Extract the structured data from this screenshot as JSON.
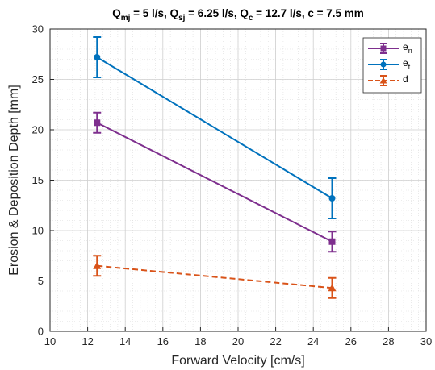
{
  "chart_data": {
    "type": "line",
    "title_parts": [
      {
        "t": "Q",
        "sub": "mj",
        "rest": " = 5 l/s, "
      },
      {
        "t": "Q",
        "sub": "sj",
        "rest": " = 6.25 l/s, "
      },
      {
        "t": "Q",
        "sub": "c",
        "rest": " = 12.7 l/s, c = 7.5 mm"
      }
    ],
    "xlabel": "Forward Velocity [cm/s]",
    "ylabel": "Erosion & Deposition Depth [mm]",
    "xlim": [
      10,
      30
    ],
    "ylim": [
      0,
      30
    ],
    "xticks": [
      10,
      12,
      14,
      16,
      18,
      20,
      22,
      24,
      26,
      28,
      30
    ],
    "yticks": [
      0,
      5,
      10,
      15,
      20,
      25,
      30
    ],
    "grid": true,
    "minor_grid": true,
    "legend_position": "top-right",
    "series": [
      {
        "name_base": "e",
        "name_sub": "n",
        "color": "#7E2F8E",
        "marker": "square",
        "dash": false,
        "x": [
          12.5,
          25
        ],
        "y": [
          20.7,
          8.9
        ],
        "err": [
          1.0,
          1.0
        ]
      },
      {
        "name_base": "e",
        "name_sub": "t",
        "color": "#0072BD",
        "marker": "circle",
        "dash": false,
        "x": [
          12.5,
          25
        ],
        "y": [
          27.2,
          13.2
        ],
        "err": [
          2.0,
          2.0
        ]
      },
      {
        "name_base": "d",
        "name_sub": "",
        "color": "#D95319",
        "marker": "triangle",
        "dash": true,
        "x": [
          12.5,
          25
        ],
        "y": [
          6.5,
          4.3
        ],
        "err": [
          1.0,
          1.0
        ]
      }
    ]
  }
}
